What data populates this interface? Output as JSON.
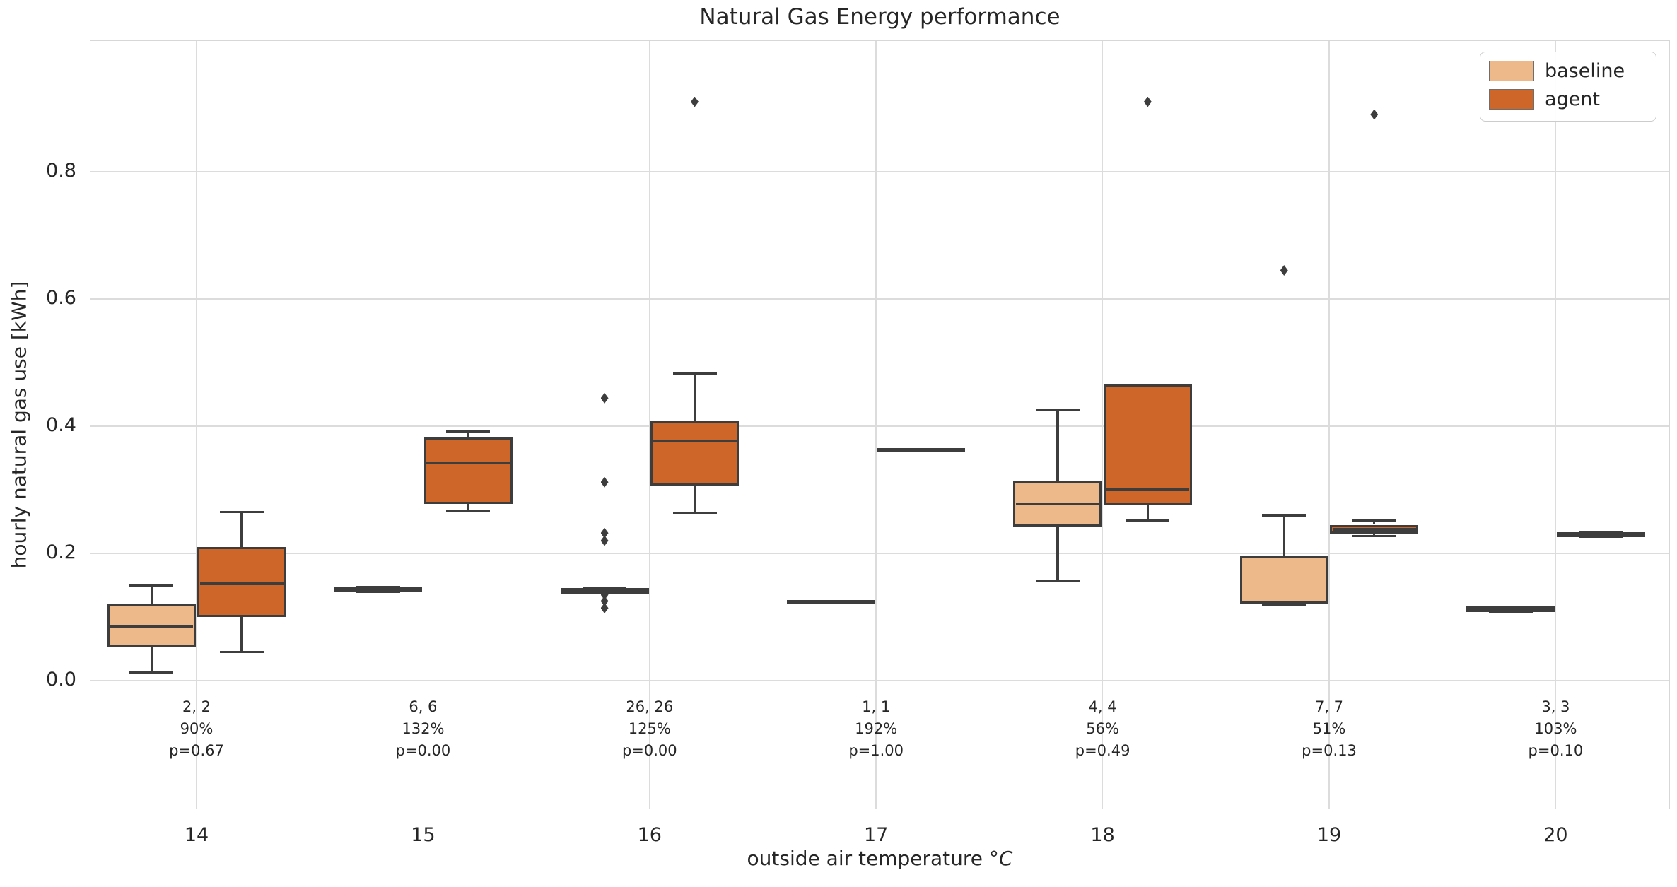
{
  "title": "Natural Gas Energy performance",
  "axes": {
    "ylabel": "hourly natural gas use [kWh]",
    "xlabel": "outside air temperature ",
    "xlabel_unit": "°C",
    "ytick_labels": [
      "0.0",
      "0.2",
      "0.4",
      "0.6",
      "0.8"
    ],
    "yticks": [
      0.0,
      0.2,
      0.4,
      0.6,
      0.8
    ],
    "xtick_labels": [
      "14",
      "15",
      "16",
      "17",
      "18",
      "19",
      "20"
    ]
  },
  "legend": {
    "position": "upper right",
    "items": [
      {
        "label": "baseline",
        "color": "#eeb98a"
      },
      {
        "label": "agent",
        "color": "#cd6628"
      }
    ]
  },
  "chart_data": {
    "type": "grouped_boxplot",
    "title": "Natural Gas Energy performance",
    "xlabel": "outside air temperature °C",
    "ylabel": "hourly natural gas use [kWh]",
    "categories": [
      "14",
      "15",
      "16",
      "17",
      "18",
      "19",
      "20"
    ],
    "ylim": [
      -0.2,
      1.01
    ],
    "grid": true,
    "line_color": "#3d3d3d",
    "grid_color": "#dcdcdc",
    "series": [
      {
        "name": "baseline",
        "color": "#eeb98a",
        "boxes": [
          {
            "whislo": 0.013,
            "q1": 0.053,
            "med": 0.085,
            "q3": 0.121,
            "whishi": 0.15,
            "fliers": []
          },
          {
            "whislo": 0.14,
            "q1": 0.142,
            "med": 0.1435,
            "q3": 0.145,
            "whishi": 0.147,
            "fliers": []
          },
          {
            "whislo": 0.137,
            "q1": 0.139,
            "med": 0.141,
            "q3": 0.143,
            "whishi": 0.145,
            "fliers": [
              0.444,
              0.312,
              0.232,
              0.22,
              0.135,
              0.125,
              0.114
            ]
          },
          {
            "whislo": 0.124,
            "q1": 0.124,
            "med": 0.124,
            "q3": 0.124,
            "whishi": 0.124,
            "fliers": []
          },
          {
            "whislo": 0.157,
            "q1": 0.242,
            "med": 0.277,
            "q3": 0.315,
            "whishi": 0.425,
            "fliers": []
          },
          {
            "whislo": 0.118,
            "q1": 0.121,
            "med": 0.123,
            "q3": 0.196,
            "whishi": 0.26,
            "fliers": [
              0.645
            ]
          },
          {
            "whislo": 0.107,
            "q1": 0.11,
            "med": 0.1125,
            "q3": 0.115,
            "whishi": 0.116,
            "fliers": []
          }
        ]
      },
      {
        "name": "agent",
        "color": "#cd6628",
        "boxes": [
          {
            "whislo": 0.045,
            "q1": 0.1,
            "med": 0.153,
            "q3": 0.21,
            "whishi": 0.265,
            "fliers": []
          },
          {
            "whislo": 0.267,
            "q1": 0.278,
            "med": 0.343,
            "q3": 0.382,
            "whishi": 0.392,
            "fliers": []
          },
          {
            "whislo": 0.264,
            "q1": 0.307,
            "med": 0.376,
            "q3": 0.408,
            "whishi": 0.483,
            "fliers": [
              0.91
            ]
          },
          {
            "whislo": 0.363,
            "q1": 0.363,
            "med": 0.363,
            "q3": 0.363,
            "whishi": 0.363,
            "fliers": []
          },
          {
            "whislo": 0.251,
            "q1": 0.276,
            "med": 0.3,
            "q3": 0.466,
            "whishi": 0.466,
            "fliers": [
              0.91
            ]
          },
          {
            "whislo": 0.227,
            "q1": 0.231,
            "med": 0.238,
            "q3": 0.245,
            "whishi": 0.252,
            "fliers": [
              0.89
            ]
          },
          {
            "whislo": 0.2265,
            "q1": 0.228,
            "med": 0.2295,
            "q3": 0.231,
            "whishi": 0.2325,
            "fliers": []
          }
        ]
      }
    ],
    "annotations": [
      {
        "lines": [
          "2, 2",
          "90%",
          "p=0.67"
        ]
      },
      {
        "lines": [
          "6, 6",
          "132%",
          "p=0.00"
        ]
      },
      {
        "lines": [
          "26, 26",
          "125%",
          "p=0.00"
        ]
      },
      {
        "lines": [
          "1, 1",
          "192%",
          "p=1.00"
        ]
      },
      {
        "lines": [
          "4, 4",
          "56%",
          "p=0.49"
        ]
      },
      {
        "lines": [
          "7, 7",
          "51%",
          "p=0.13"
        ]
      },
      {
        "lines": [
          "3, 3",
          "103%",
          "p=0.10"
        ]
      }
    ]
  }
}
